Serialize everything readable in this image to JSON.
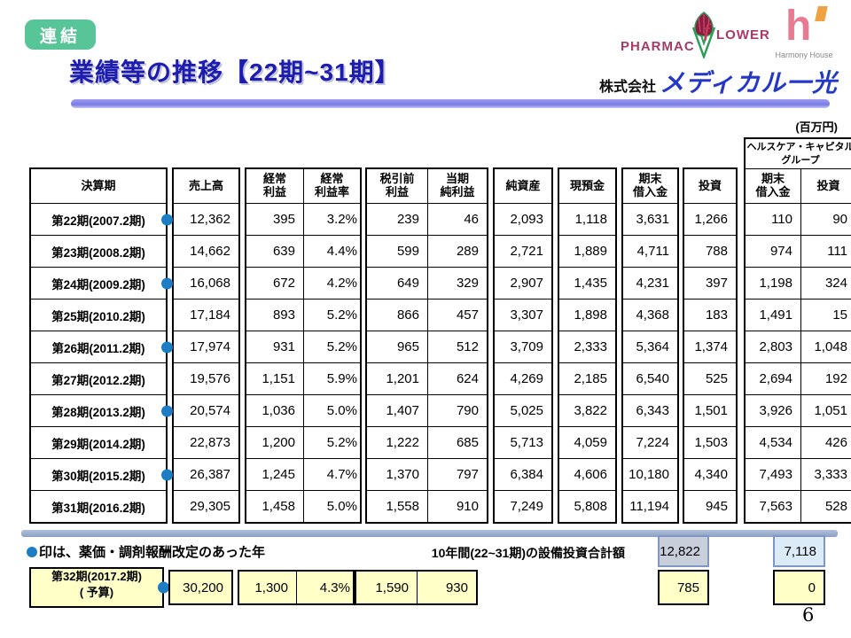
{
  "badge": "連結",
  "title": "業績等の推移【22期~31期】",
  "logos": {
    "pharmacy_left": "PHARMAC",
    "pharmacy_f": "f",
    "pharmacy_right": "LOWER",
    "harmony_h": "h",
    "harmony_text": "Harmony House",
    "company_prefix": "株式会社",
    "company_name": "メディカル一光"
  },
  "table": {
    "unit": "(百万円)",
    "healthcare_group_title": "ヘルスケア・キャピタル\nグループ",
    "headers": {
      "period": "決算期",
      "cols": [
        "売上高",
        "経常\n利益",
        "経常\n利益率",
        "税引前\n利益",
        "当期\n純利益",
        "純資産",
        "現預金",
        "期末\n借入金",
        "投資",
        "期末\n借入金",
        "投資"
      ]
    },
    "rows": [
      {
        "period": "第22期(2007.2期)",
        "revision_dot": true,
        "values": [
          "12,362",
          "395",
          "3.2%",
          "239",
          "46",
          "2,093",
          "1,118",
          "3,631",
          "1,266",
          "110",
          "90"
        ]
      },
      {
        "period": "第23期(2008.2期)",
        "revision_dot": false,
        "values": [
          "14,662",
          "639",
          "4.4%",
          "599",
          "289",
          "2,721",
          "1,889",
          "4,711",
          "788",
          "974",
          "111"
        ]
      },
      {
        "period": "第24期(2009.2期)",
        "revision_dot": true,
        "values": [
          "16,068",
          "672",
          "4.2%",
          "649",
          "329",
          "2,907",
          "1,435",
          "4,231",
          "397",
          "1,198",
          "324"
        ]
      },
      {
        "period": "第25期(2010.2期)",
        "revision_dot": false,
        "values": [
          "17,184",
          "893",
          "5.2%",
          "866",
          "457",
          "3,307",
          "1,898",
          "4,368",
          "183",
          "1,491",
          "15"
        ]
      },
      {
        "period": "第26期(2011.2期)",
        "revision_dot": true,
        "values": [
          "17,974",
          "931",
          "5.2%",
          "965",
          "512",
          "3,709",
          "2,333",
          "5,364",
          "1,374",
          "2,803",
          "1,048"
        ]
      },
      {
        "period": "第27期(2012.2期)",
        "revision_dot": false,
        "values": [
          "19,576",
          "1,151",
          "5.9%",
          "1,201",
          "624",
          "4,269",
          "2,185",
          "6,540",
          "525",
          "2,694",
          "192"
        ]
      },
      {
        "period": "第28期(2013.2期)",
        "revision_dot": true,
        "values": [
          "20,574",
          "1,036",
          "5.0%",
          "1,407",
          "790",
          "5,025",
          "3,822",
          "6,343",
          "1,501",
          "3,926",
          "1,051"
        ]
      },
      {
        "period": "第29期(2014.2期)",
        "revision_dot": false,
        "values": [
          "22,873",
          "1,200",
          "5.2%",
          "1,222",
          "685",
          "5,713",
          "4,059",
          "7,224",
          "1,503",
          "4,534",
          "426"
        ]
      },
      {
        "period": "第30期(2015.2期)",
        "revision_dot": true,
        "values": [
          "26,387",
          "1,245",
          "4.7%",
          "1,370",
          "797",
          "6,384",
          "4,606",
          "10,180",
          "4,340",
          "7,493",
          "3,333"
        ]
      },
      {
        "period": "第31期(2016.2期)",
        "revision_dot": false,
        "values": [
          "29,305",
          "1,458",
          "5.0%",
          "1,558",
          "910",
          "7,249",
          "5,808",
          "11,194",
          "945",
          "7,563",
          "528"
        ]
      }
    ]
  },
  "footer": {
    "note": "印は、薬価・調剤報酬改定のあった年",
    "summary": {
      "label": "10年間(22~31期)の設備投資合計額",
      "investment_total": "12,822",
      "hc_investment_total": "7,118"
    },
    "budget": {
      "period_line1": "第32期(2017.2期)",
      "period_line2": "( 予算)",
      "sales": "30,200",
      "ordinary_profit": "1,300",
      "ordinary_margin": "4.3%",
      "pretax_profit": "1,590",
      "net_income": "930",
      "investment": "785",
      "hc_investment": "0"
    },
    "page_number": "6"
  }
}
